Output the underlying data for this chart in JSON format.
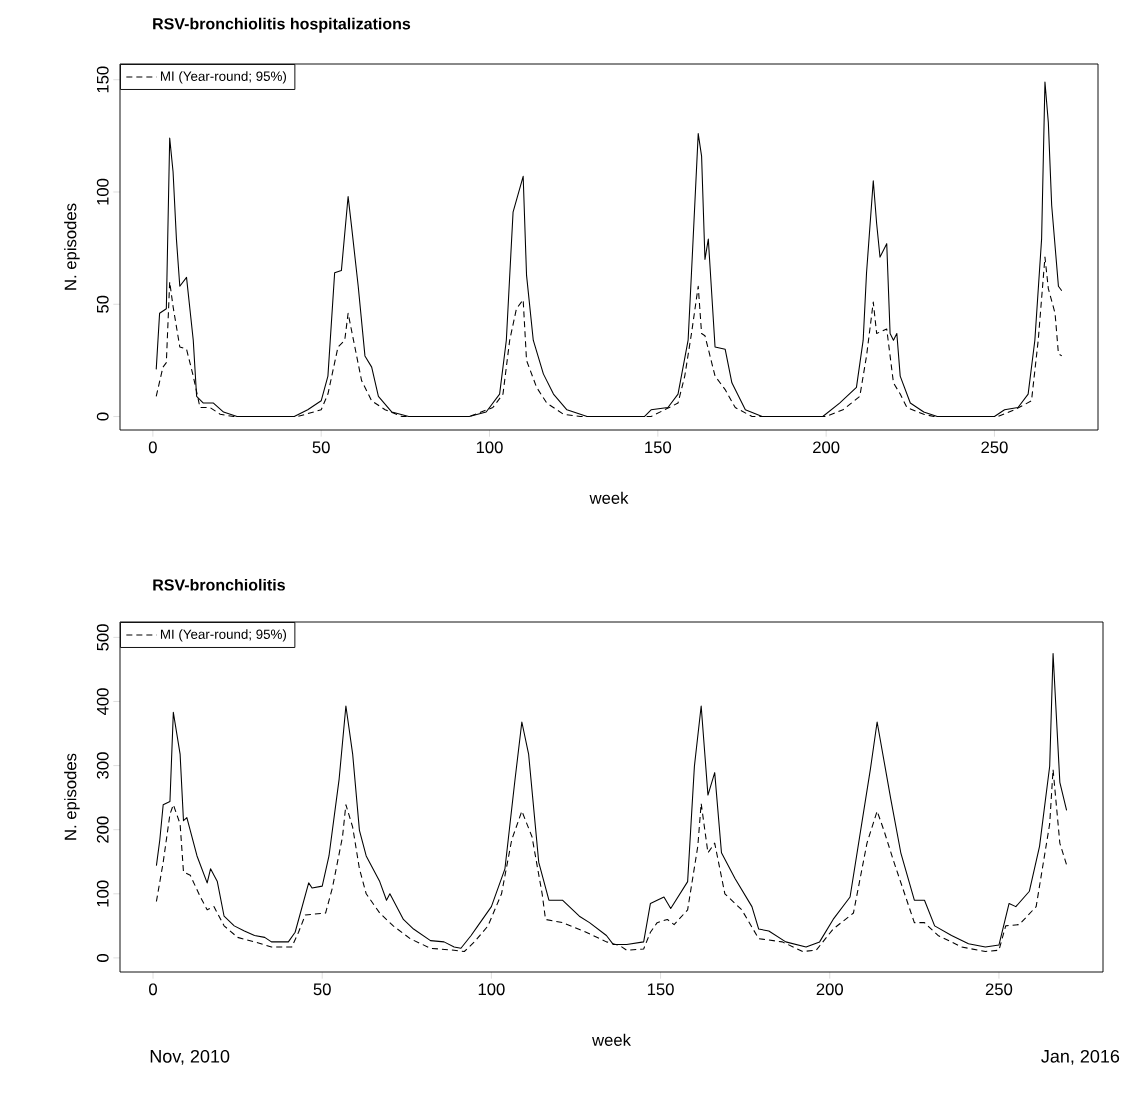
{
  "chart_data": [
    {
      "type": "line",
      "title": "RSV-bronchiolitis  hospitalizations",
      "xlabel": "week",
      "ylabel": "N. episodes",
      "xlim": [
        -9.76,
        280.76
      ],
      "ylim": [
        -6,
        157
      ],
      "xticks": [
        0,
        50,
        100,
        150,
        200,
        250
      ],
      "yticks": [
        0,
        50,
        100,
        150
      ],
      "legend": "top left",
      "series": [
        {
          "color": "#000000",
          "line_style": "solid",
          "x": [
            1,
            2,
            4,
            5,
            6,
            7,
            8,
            10,
            12,
            13,
            15,
            18,
            21,
            25,
            42,
            46,
            50,
            52,
            54,
            56,
            58,
            59,
            61,
            63,
            65,
            67,
            71,
            76,
            94,
            99,
            103,
            105,
            107,
            110,
            111,
            113,
            116,
            119,
            123,
            129,
            146,
            148,
            153,
            156,
            159,
            160,
            162,
            163,
            164,
            165,
            167,
            170,
            172,
            176,
            181,
            199,
            204,
            209,
            211,
            212,
            214,
            215,
            216,
            218,
            219,
            220,
            221,
            222,
            225,
            229,
            233,
            250,
            253,
            257,
            260,
            262,
            264,
            265,
            266,
            267,
            269,
            270
          ],
          "values": [
            21,
            46,
            48,
            124,
            109,
            79,
            58,
            62,
            34,
            9,
            6,
            6,
            2,
            0,
            0,
            3,
            7,
            18,
            64,
            65,
            98,
            85,
            58,
            27,
            22,
            9,
            2,
            0,
            0,
            2,
            10,
            34,
            91,
            107,
            63,
            34,
            19,
            10,
            3,
            0,
            0,
            3,
            4,
            10,
            34,
            64,
            126,
            116,
            70,
            79,
            31,
            30,
            15,
            3,
            0,
            0,
            6,
            13,
            34,
            64,
            105,
            86,
            71,
            77,
            37,
            34,
            37,
            18,
            6,
            2,
            0,
            0,
            3,
            4,
            10,
            34,
            79,
            149,
            131,
            94,
            58,
            56
          ]
        },
        {
          "name": "MI (Year-round; 95%)",
          "color": "#000000",
          "line_style": "dashed",
          "x": [
            1,
            3,
            4,
            5,
            6,
            8,
            10,
            12,
            14,
            17,
            20,
            24,
            43,
            50,
            52,
            55,
            57,
            58,
            60,
            62,
            65,
            69,
            74,
            94,
            101,
            104,
            106,
            108,
            110,
            111,
            114,
            117,
            122,
            127,
            148,
            152,
            156,
            158,
            160,
            162,
            163,
            164,
            167,
            170,
            173,
            178,
            200,
            205,
            210,
            212,
            214,
            215,
            218,
            220,
            222,
            224,
            229,
            232,
            251,
            256,
            261,
            263,
            265,
            266,
            268,
            269,
            270
          ],
          "values": [
            9,
            22,
            24,
            60,
            49,
            31,
            30,
            18,
            4,
            4,
            1,
            0,
            0,
            3,
            10,
            31,
            34,
            46,
            31,
            16,
            7,
            3,
            0,
            0,
            4,
            10,
            34,
            48,
            52,
            25,
            13,
            6,
            1,
            0,
            0,
            3,
            6,
            18,
            37,
            58,
            37,
            36,
            18,
            12,
            4,
            0,
            0,
            3,
            9,
            27,
            51,
            37,
            39,
            15,
            10,
            4,
            1,
            0,
            0,
            3,
            7,
            34,
            71,
            57,
            46,
            28,
            27
          ]
        }
      ]
    },
    {
      "type": "line",
      "title": "RSV-bronchiolitis",
      "xlabel": "week",
      "ylabel": "N. episodes",
      "xlim": [
        -9.76,
        280.76
      ],
      "ylim": [
        -22,
        524
      ],
      "xticks": [
        0,
        50,
        100,
        150,
        200,
        250
      ],
      "yticks": [
        0,
        100,
        200,
        300,
        400,
        500
      ],
      "legend": "top left",
      "annotations": [
        "Nov, 2010",
        "Jan, 2016"
      ],
      "series": [
        {
          "color": "#000000",
          "line_style": "solid",
          "x": [
            1,
            2,
            3,
            5,
            6,
            8,
            9,
            10,
            13,
            16,
            17,
            19,
            21,
            24,
            27,
            30,
            33,
            35,
            40,
            42,
            46,
            47,
            50,
            52,
            55,
            57,
            59,
            61,
            63,
            67,
            69,
            70,
            74,
            77,
            82,
            86,
            89,
            91,
            94,
            96,
            100,
            104,
            107,
            109,
            111,
            114,
            117,
            121,
            126,
            129,
            134,
            136,
            140,
            145,
            147,
            151,
            153,
            158,
            160,
            162,
            164,
            166,
            168,
            172,
            177,
            179,
            182,
            187,
            193,
            197,
            201,
            206,
            212,
            214,
            218,
            221,
            225,
            228,
            231,
            236,
            241,
            246,
            250,
            253,
            255,
            259,
            262,
            265,
            266,
            268,
            270
          ],
          "values": [
            144,
            184,
            239,
            244,
            383,
            318,
            214,
            219,
            159,
            117,
            139,
            119,
            65,
            50,
            42,
            35,
            32,
            25,
            25,
            40,
            117,
            109,
            112,
            159,
            279,
            393,
            318,
            199,
            159,
            119,
            90,
            100,
            60,
            45,
            27,
            25,
            17,
            15,
            35,
            50,
            80,
            139,
            279,
            368,
            318,
            149,
            90,
            90,
            65,
            55,
            35,
            21,
            21,
            25,
            85,
            95,
            77,
            119,
            299,
            393,
            254,
            289,
            164,
            124,
            80,
            45,
            42,
            25,
            17,
            25,
            60,
            95,
            294,
            368,
            249,
            164,
            90,
            90,
            50,
            35,
            22,
            17,
            20,
            85,
            80,
            104,
            174,
            299,
            475,
            274,
            230
          ]
        },
        {
          "name": "MI (Year-round; 95%)",
          "color": "#000000",
          "line_style": "dashed",
          "x": [
            1,
            3,
            5,
            6,
            8,
            9,
            11,
            14,
            16,
            18,
            21,
            25,
            30,
            35,
            41,
            43,
            45,
            51,
            53,
            56,
            57,
            59,
            61,
            63,
            67,
            71,
            76,
            82,
            89,
            92,
            95,
            99,
            103,
            106,
            109,
            112,
            115,
            116,
            121,
            128,
            134,
            138,
            140,
            145,
            147,
            149,
            152,
            154,
            158,
            161,
            162,
            164,
            166,
            169,
            174,
            179,
            186,
            192,
            196,
            201,
            207,
            211,
            214,
            216,
            219,
            225,
            228,
            232,
            239,
            246,
            250,
            252,
            256,
            261,
            265,
            266,
            268,
            270
          ],
          "values": [
            88,
            149,
            224,
            239,
            209,
            134,
            129,
            95,
            75,
            80,
            50,
            32,
            25,
            17,
            17,
            40,
            67,
            70,
            109,
            189,
            239,
            204,
            139,
            100,
            70,
            50,
            30,
            15,
            12,
            10,
            25,
            50,
            100,
            184,
            229,
            189,
            100,
            60,
            55,
            40,
            25,
            19,
            12,
            14,
            40,
            55,
            60,
            52,
            75,
            174,
            241,
            164,
            179,
            100,
            75,
            30,
            25,
            10,
            12,
            45,
            70,
            179,
            229,
            199,
            149,
            55,
            55,
            35,
            17,
            10,
            12,
            50,
            52,
            80,
            209,
            294,
            179,
            145
          ]
        }
      ]
    }
  ]
}
